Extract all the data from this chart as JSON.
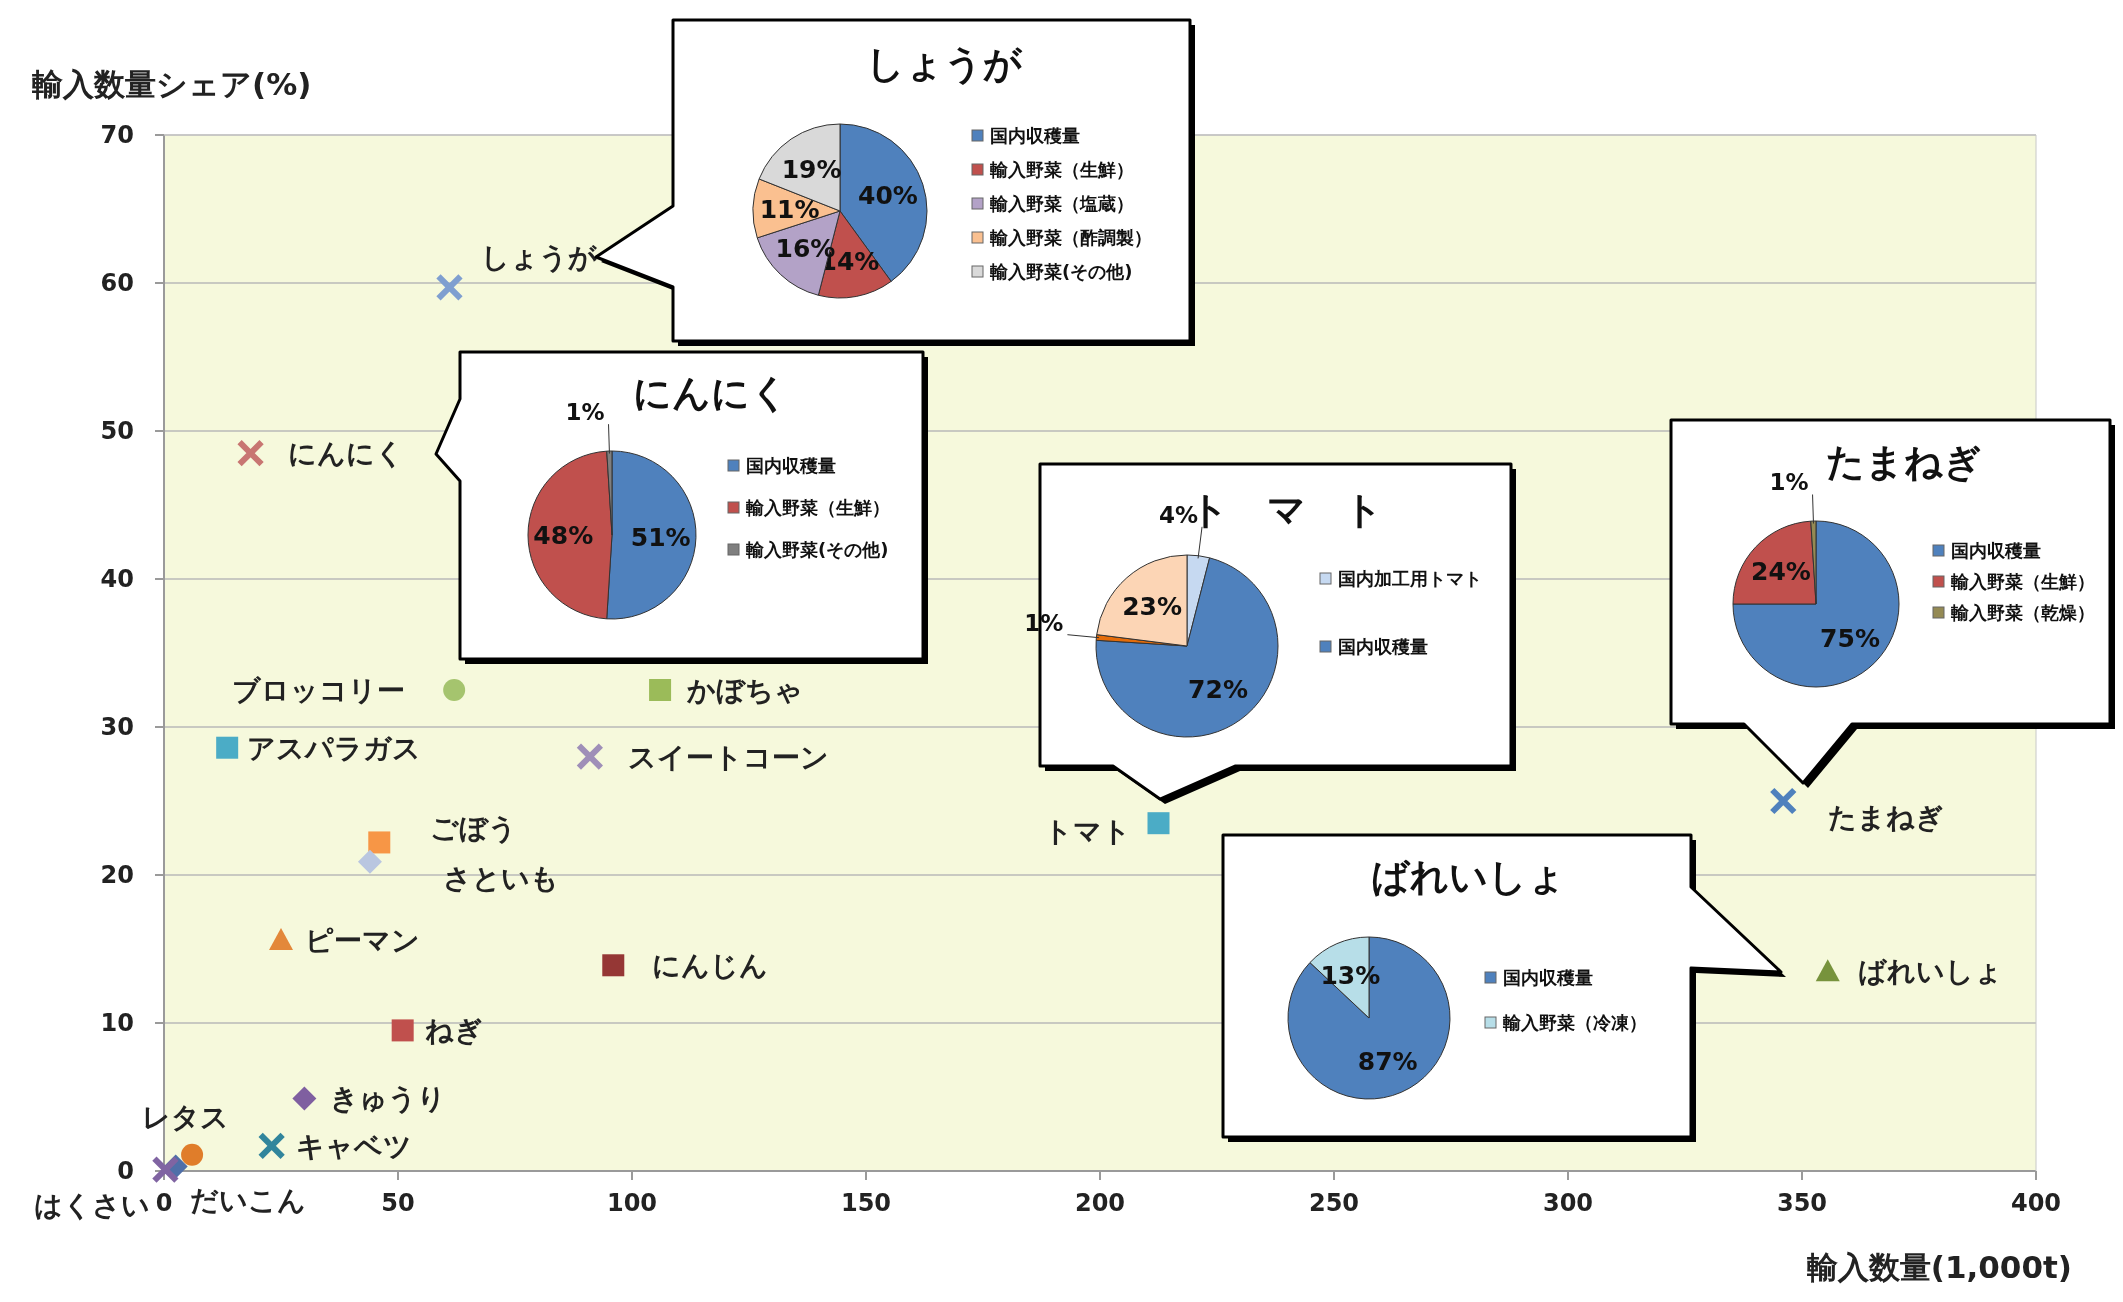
{
  "chart_data": [
    {
      "type": "scatter",
      "xlabel": "輸入数量(1,000t)",
      "ylabel": "輸入数量シェア(%)",
      "xlim": [
        0,
        400
      ],
      "xticks": [
        0,
        50,
        100,
        150,
        200,
        250,
        300,
        350,
        400
      ],
      "ylim": [
        0,
        70
      ],
      "yticks": [
        0,
        10,
        20,
        30,
        40,
        50,
        60,
        70
      ],
      "grid": "y",
      "series": [
        {
          "name": "しょうが",
          "color": "#7f9fd0",
          "marker": "cross",
          "x": [
            61
          ],
          "values": [
            59.7
          ]
        },
        {
          "name": "にんにく",
          "color": "#c87672",
          "marker": "cross",
          "x": [
            18.5
          ],
          "values": [
            48.5
          ]
        },
        {
          "name": "ブロッコリー",
          "color": "#a5c46e",
          "marker": "circle",
          "x": [
            62
          ],
          "values": [
            32.5
          ]
        },
        {
          "name": "かぼちゃ",
          "color": "#9bbb59",
          "marker": "square",
          "x": [
            106
          ],
          "values": [
            32.5
          ]
        },
        {
          "name": "アスパラガス",
          "color": "#4bacc6",
          "marker": "square",
          "x": [
            13.5
          ],
          "values": [
            28.6
          ]
        },
        {
          "name": "スイートコーン",
          "color": "#9f8fb8",
          "marker": "cross",
          "x": [
            91
          ],
          "values": [
            28
          ]
        },
        {
          "name": "ごぼう",
          "color": "#f79646",
          "marker": "square",
          "x": [
            46
          ],
          "values": [
            22.2
          ]
        },
        {
          "name": "さといも",
          "color": "#b9c6e0",
          "marker": "diamond",
          "x": [
            44
          ],
          "values": [
            20.9
          ]
        },
        {
          "name": "ピーマン",
          "color": "#e3883a",
          "marker": "triangle",
          "x": [
            25
          ],
          "values": [
            15.6
          ]
        },
        {
          "name": "にんじん",
          "color": "#953735",
          "marker": "square",
          "x": [
            96
          ],
          "values": [
            13.9
          ]
        },
        {
          "name": "ねぎ",
          "color": "#c0504d",
          "marker": "square",
          "x": [
            51
          ],
          "values": [
            9.5
          ]
        },
        {
          "name": "きゅうり",
          "color": "#7f5fa0",
          "marker": "diamond",
          "x": [
            30
          ],
          "values": [
            4.9
          ]
        },
        {
          "name": "キャベツ",
          "color": "#31859c",
          "marker": "cross",
          "x": [
            23
          ],
          "values": [
            1.7
          ]
        },
        {
          "name": "レタス",
          "color": "#e07d2a",
          "marker": "circle",
          "x": [
            6
          ],
          "values": [
            1.1
          ]
        },
        {
          "name": "だいこん",
          "color": "#4f6fa8",
          "marker": "diamond",
          "x": [
            2.5
          ],
          "values": [
            0.3
          ]
        },
        {
          "name": "はくさい",
          "color": "#8064a2",
          "marker": "cross",
          "x": [
            0.3
          ],
          "values": [
            0.1
          ]
        },
        {
          "name": "トマト",
          "color": "#4bacc6",
          "marker": "square",
          "x": [
            212.5
          ],
          "values": [
            23.5
          ]
        },
        {
          "name": "たまねぎ",
          "color": "#4f81bd",
          "marker": "cross",
          "x": [
            346
          ],
          "values": [
            25
          ]
        },
        {
          "name": "ばれいしょ",
          "color": "#77933c",
          "marker": "triangle",
          "x": [
            355.5
          ],
          "values": [
            13.5
          ]
        }
      ]
    },
    {
      "type": "pie",
      "title": "しょうが",
      "legend": "right",
      "categories": [
        "国内収穫量",
        "輸入野菜（生鮮）",
        "輸入野菜（塩蔵）",
        "輸入野菜（酢調製）",
        "輸入野菜(その他)"
      ],
      "values": [
        40,
        14,
        16,
        11,
        19
      ],
      "value_labels": [
        "40%",
        "14%",
        "16%",
        "11%",
        "19%"
      ],
      "colors": [
        "#4f81bd",
        "#c0504d",
        "#b3a2c7",
        "#fac090",
        "#d9d9d9"
      ]
    },
    {
      "type": "pie",
      "title": "にんにく",
      "legend": "right",
      "categories": [
        "国内収穫量",
        "輸入野菜（生鮮）",
        "輸入野菜(その他)"
      ],
      "values": [
        51,
        48,
        1
      ],
      "value_labels": [
        "51%",
        "48%",
        "1%"
      ],
      "colors": [
        "#4f81bd",
        "#c0504d",
        "#7f7f7f"
      ]
    },
    {
      "type": "pie",
      "title": "ト　マ　ト",
      "legend": "right",
      "categories": [
        "国内加工用トマト",
        "国内収穫量",
        null,
        null
      ],
      "values": [
        4,
        72,
        1,
        23
      ],
      "value_labels": [
        "4%",
        "72%",
        "1%",
        "23%"
      ],
      "colors": [
        "#c6d9f1",
        "#4f81bd",
        "#e46c0a",
        "#fcd5b5"
      ]
    },
    {
      "type": "pie",
      "title": "たまねぎ",
      "legend": "right",
      "categories": [
        "国内収穫量",
        "輸入野菜（生鮮）",
        "輸入野菜（乾燥）"
      ],
      "values": [
        75,
        24,
        1
      ],
      "value_labels": [
        "75%",
        "24%",
        "1%"
      ],
      "colors": [
        "#4f81bd",
        "#c0504d",
        "#948a54"
      ]
    },
    {
      "type": "pie",
      "title": "ばれいしょ",
      "legend": "right",
      "categories": [
        "国内収穫量",
        "輸入野菜（冷凍）"
      ],
      "values": [
        87,
        13
      ],
      "value_labels": [
        "87%",
        "13%"
      ],
      "colors": [
        "#4f81bd",
        "#b7dee8"
      ]
    }
  ]
}
